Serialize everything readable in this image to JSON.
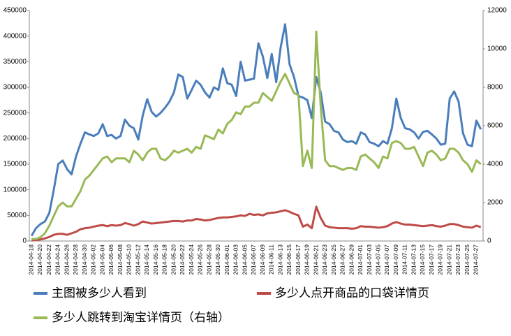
{
  "chart_data": {
    "type": "line",
    "categories": [
      "2014-04-18",
      null,
      "2014-04-20",
      null,
      "2014-04-22",
      null,
      "2014-04-24",
      null,
      "2014-04-26",
      null,
      "2014-04-28",
      null,
      "2014-04-30",
      null,
      "2014-05-02",
      null,
      "2014-05-04",
      null,
      "2014-05-06",
      null,
      "2014-05-08",
      null,
      "2014-05-10",
      null,
      "2014-05-12",
      null,
      "2014-05-14",
      null,
      "2014-05-16",
      null,
      "2014-05-18",
      null,
      "2014-05-20",
      null,
      "2014-05-22",
      null,
      "2014-05-24",
      null,
      "2014-05-26",
      null,
      "2014-05-28",
      null,
      "2014-05-30",
      null,
      "2014-06-01",
      null,
      "2014-06-03",
      null,
      "2014-06-05",
      null,
      "2014-06-07",
      null,
      "2014-06-09",
      null,
      "2014-06-11",
      null,
      "2014-06-13",
      null,
      "2014-06-15",
      null,
      "2014-06-17",
      null,
      "2014-06-19",
      null,
      "2014-06-21",
      null,
      "2014-06-23",
      null,
      "2014-06-25",
      null,
      "2014-06-27",
      null,
      "2014-06-29",
      null,
      "2014-07-01",
      null,
      "2014-07-03",
      null,
      "2014-07-05",
      null,
      "2014-07-07",
      null,
      "2014-07-09",
      null,
      "2014-07-11",
      null,
      "2014-07-13",
      null,
      "2014-07-15",
      null,
      "2014-07-17",
      null,
      "2014-07-19",
      null,
      "2014-07-21",
      null,
      "2014-07-23",
      null,
      "2014-07-25",
      null,
      "2014-07-27",
      null
    ],
    "series": [
      {
        "name": "主图被多少人看到",
        "color": "#4a7ebb",
        "values": [
          10000,
          25000,
          33000,
          38000,
          55000,
          100000,
          150000,
          157000,
          140000,
          130000,
          165000,
          190000,
          212000,
          208000,
          205000,
          210000,
          228000,
          205000,
          207000,
          200000,
          205000,
          237000,
          225000,
          220000,
          198000,
          245000,
          277000,
          252000,
          243000,
          250000,
          260000,
          272000,
          290000,
          325000,
          320000,
          278000,
          295000,
          313000,
          305000,
          290000,
          280000,
          300000,
          295000,
          337000,
          308000,
          305000,
          283000,
          350000,
          313000,
          315000,
          317000,
          386000,
          360000,
          318000,
          365000,
          310000,
          378000,
          423000,
          345000,
          320000,
          283000,
          280000,
          275000,
          240000,
          320000,
          290000,
          233000,
          228000,
          215000,
          212000,
          198000,
          193000,
          195000,
          190000,
          212000,
          208000,
          193000,
          190000,
          185000,
          195000,
          190000,
          220000,
          278000,
          240000,
          220000,
          218000,
          212000,
          200000,
          213000,
          215000,
          208000,
          200000,
          188000,
          190000,
          278000,
          292000,
          272000,
          210000,
          188000,
          185000,
          235000,
          218000
        ]
      },
      {
        "name": "多少人点开商品的口袋详情页",
        "color": "#be4b48",
        "values": [
          1000,
          2000,
          3000,
          5000,
          8000,
          12000,
          14000,
          14000,
          12000,
          15000,
          18000,
          23000,
          25000,
          26000,
          28000,
          30000,
          31000,
          29000,
          31000,
          30000,
          31000,
          35000,
          33000,
          30000,
          33000,
          38000,
          36000,
          34000,
          35000,
          36000,
          37000,
          38000,
          39000,
          39000,
          38000,
          40000,
          40000,
          43000,
          42000,
          40000,
          41000,
          43000,
          45000,
          46000,
          46000,
          47000,
          48000,
          50000,
          49000,
          53000,
          51000,
          52000,
          50000,
          54000,
          55000,
          56000,
          58000,
          60000,
          57000,
          53000,
          50000,
          28000,
          32000,
          25000,
          67000,
          45000,
          30000,
          27000,
          26000,
          25000,
          25000,
          25000,
          24000,
          25000,
          29000,
          28000,
          28000,
          27000,
          26000,
          27000,
          29000,
          34000,
          37000,
          34000,
          32000,
          32000,
          31000,
          30000,
          29000,
          30000,
          31000,
          29000,
          28000,
          30000,
          33000,
          33000,
          31000,
          28000,
          27000,
          26000,
          30000,
          27000
        ]
      },
      {
        "name": "多少人跳转到淘宝详情页（右轴）",
        "color": "#98b954",
        "axis": "y2",
        "values": [
          100,
          100,
          200,
          400,
          800,
          1300,
          1800,
          2000,
          1800,
          1800,
          2200,
          2600,
          3200,
          3400,
          3700,
          4000,
          4300,
          4400,
          4100,
          4300,
          4300,
          4300,
          4100,
          4700,
          4500,
          4200,
          4600,
          4800,
          4800,
          4300,
          4200,
          4400,
          4700,
          4600,
          4700,
          4800,
          4600,
          4900,
          4800,
          5500,
          5400,
          5300,
          5800,
          5600,
          6100,
          6300,
          6700,
          6600,
          7000,
          7000,
          7200,
          7200,
          7700,
          7500,
          7300,
          7800,
          8300,
          8700,
          8200,
          7700,
          7600,
          3900,
          4700,
          3800,
          10900,
          7000,
          4200,
          3900,
          3900,
          3800,
          3700,
          3800,
          3800,
          3700,
          4400,
          4500,
          4300,
          4100,
          3800,
          4400,
          4300,
          5100,
          5200,
          5100,
          4800,
          4800,
          4900,
          4400,
          3900,
          4600,
          4700,
          4500,
          4200,
          4300,
          4800,
          4800,
          4600,
          4200,
          4000,
          3600,
          4200,
          4000
        ]
      }
    ],
    "ylim": [
      0,
      450000
    ],
    "yticks": [
      0,
      50000,
      100000,
      150000,
      200000,
      250000,
      300000,
      350000,
      400000,
      450000
    ],
    "y2lim": [
      0,
      12000
    ],
    "y2ticks": [
      0,
      2000,
      4000,
      6000,
      8000,
      10000,
      12000
    ],
    "grid": false,
    "legend": "bottom"
  }
}
